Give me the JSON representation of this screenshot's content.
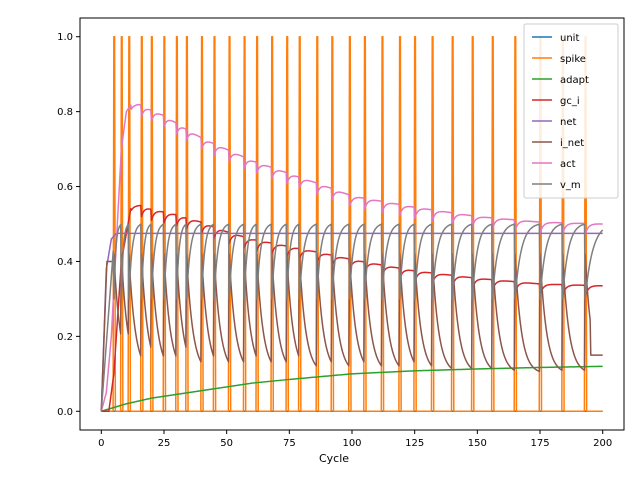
{
  "chart_data": {
    "type": "line",
    "title": "",
    "xlabel": "Cycle",
    "ylabel": "",
    "xlim": [
      -8.5,
      208.5
    ],
    "ylim": [
      -0.05,
      1.05
    ],
    "xticks": [
      0,
      25,
      50,
      75,
      100,
      125,
      150,
      175,
      200
    ],
    "yticks": [
      0.0,
      0.2,
      0.4,
      0.6,
      0.8,
      1.0
    ],
    "legend_position": "top-right",
    "grid": false,
    "spike_cycles": [
      5,
      8,
      11,
      16,
      20,
      25,
      30,
      34,
      40,
      45,
      51,
      57,
      62,
      68,
      74,
      79,
      86,
      92,
      99,
      105,
      112,
      119,
      125,
      132,
      140,
      148,
      156,
      165,
      175,
      184,
      193
    ],
    "series": [
      {
        "name": "unit",
        "color": "#1f77b4",
        "x": [
          0,
          200
        ],
        "y": [
          0.0,
          0.0
        ]
      },
      {
        "name": "spike",
        "color": "#ff7f0e",
        "description_note": ""
      },
      {
        "name": "adapt",
        "color": "#2ca02c",
        "x": [
          0,
          5,
          10,
          20,
          30,
          40,
          50,
          60,
          75,
          100,
          125,
          150,
          175,
          200
        ],
        "y": [
          0.0,
          0.01,
          0.02,
          0.035,
          0.045,
          0.055,
          0.065,
          0.075,
          0.085,
          0.1,
          0.108,
          0.113,
          0.117,
          0.12
        ]
      },
      {
        "name": "gc_i",
        "color": "#d62728",
        "x": [
          0,
          3,
          5,
          8,
          12,
          16,
          20,
          30,
          40,
          50,
          60,
          75,
          90,
          100,
          125,
          150,
          175,
          200
        ],
        "y": [
          0.0,
          0.0,
          0.1,
          0.4,
          0.55,
          0.55,
          0.54,
          0.525,
          0.505,
          0.48,
          0.46,
          0.44,
          0.42,
          0.405,
          0.375,
          0.355,
          0.34,
          0.335
        ]
      },
      {
        "name": "net",
        "color": "#9467bd",
        "x": [
          0,
          2,
          4,
          6,
          8,
          200
        ],
        "y": [
          0.0,
          0.38,
          0.46,
          0.475,
          0.475,
          0.475
        ]
      },
      {
        "name": "i_net",
        "color": "#8c564b",
        "x": [
          0,
          2,
          4,
          6,
          8,
          10,
          15,
          20,
          200
        ],
        "y": [
          0.0,
          0.35,
          0.4,
          0.25,
          0.3,
          0.25,
          0.2,
          0.15,
          0.15
        ]
      },
      {
        "name": "act",
        "color": "#e377c2",
        "x": [
          0,
          2,
          4,
          6,
          8,
          10,
          12,
          15,
          20,
          25,
          30,
          40,
          50,
          60,
          75,
          90,
          100,
          125,
          150,
          175,
          200
        ],
        "y": [
          0.0,
          0.05,
          0.2,
          0.45,
          0.7,
          0.8,
          0.82,
          0.82,
          0.805,
          0.79,
          0.77,
          0.73,
          0.7,
          0.67,
          0.635,
          0.6,
          0.575,
          0.545,
          0.52,
          0.505,
          0.5
        ]
      },
      {
        "name": "v_m",
        "color": "#7f7f7f",
        "x": [
          0,
          200
        ],
        "y": [
          0.0,
          0.45
        ]
      }
    ]
  }
}
